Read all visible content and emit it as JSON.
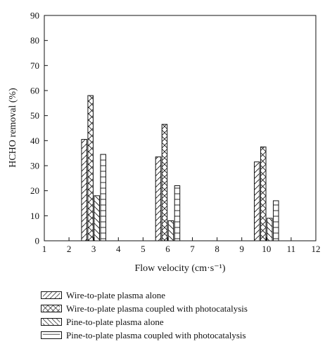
{
  "chart_data": {
    "type": "bar",
    "xlabel": "Flow velocity (cm·s⁻¹)",
    "ylabel": "HCHO removal (%)",
    "xlim": [
      1,
      12
    ],
    "ylim": [
      0,
      90
    ],
    "xticks": [
      "1",
      "2",
      "3",
      "4",
      "5",
      "6",
      "7",
      "8",
      "9",
      "10",
      "11",
      "12"
    ],
    "yticks": [
      "0",
      "10",
      "20",
      "30",
      "40",
      "50",
      "60",
      "70",
      "80",
      "90"
    ],
    "grid": false,
    "legend_position": "below",
    "categories": [
      "3",
      "6",
      "10"
    ],
    "category_x": [
      3,
      6,
      10
    ],
    "series": [
      {
        "name": "Wire-to-plate plasma alone",
        "pattern": "forward-diagonal",
        "values": [
          40.5,
          33.5,
          31.5
        ]
      },
      {
        "name": "Wire-to-plate plasma coupled with photocatalysis",
        "pattern": "cross-diagonal",
        "values": [
          58,
          46.5,
          37.5
        ]
      },
      {
        "name": "Pine-to-plate plasma alone",
        "pattern": "back-diagonal",
        "values": [
          18,
          8,
          9
        ]
      },
      {
        "name": "Pine-to-plate plasma coupled with photocatalysis",
        "pattern": "horizontal",
        "values": [
          34.5,
          22,
          16
        ]
      }
    ]
  }
}
